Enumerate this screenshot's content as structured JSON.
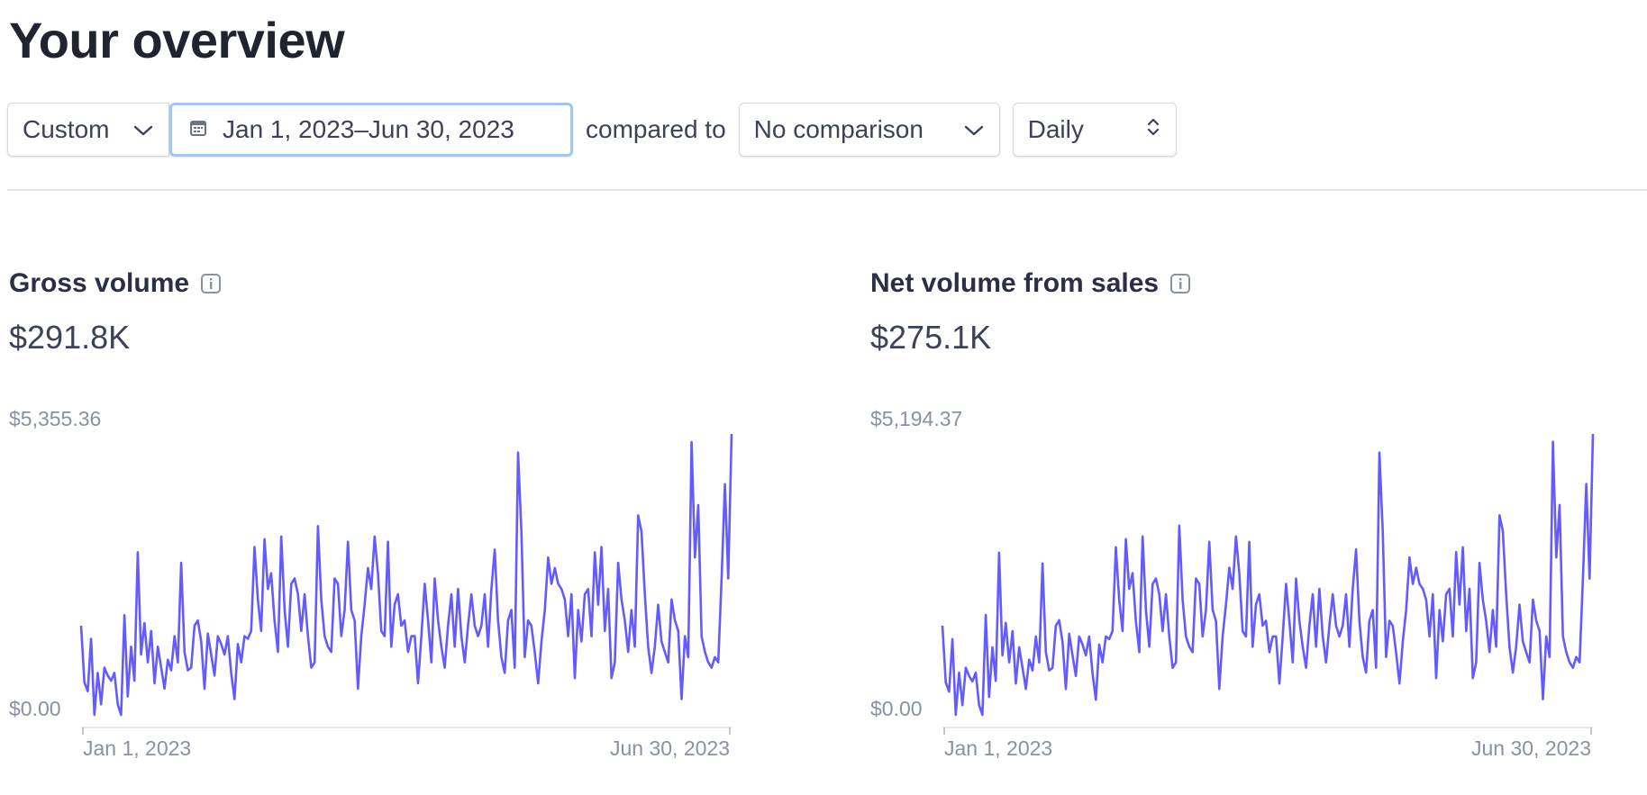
{
  "page": {
    "title": "Your overview"
  },
  "filters": {
    "period_label": "Custom",
    "date_range": "Jan 1, 2023–Jun 30, 2023",
    "compared_to_label": "compared to",
    "comparison_label": "No comparison",
    "interval_label": "Daily"
  },
  "icons": {
    "calendar": "calendar-icon",
    "chevron": "chevron-down-icon",
    "stepper": "up-down-chevron-icon",
    "info": "info-icon"
  },
  "colors": {
    "line": "#635bff",
    "focus_ring": "#9ec9f0",
    "axis": "#8792a2"
  },
  "metrics": [
    {
      "title": "Gross volume",
      "value": "$291.8K",
      "y_max_label": "$5,355.36",
      "y_min_label": "$0.00",
      "x_start_label": "Jan 1, 2023",
      "x_end_label": "Jun 30, 2023"
    },
    {
      "title": "Net volume from sales",
      "value": "$275.1K",
      "y_max_label": "$5,194.37",
      "y_min_label": "$0.00",
      "x_start_label": "Jan 1, 2023",
      "x_end_label": "Jun 30, 2023"
    }
  ],
  "chart_data": [
    {
      "type": "line",
      "x_start": "2023-01-01",
      "x_end": "2023-06-30",
      "ylim": [
        0,
        5355.36
      ],
      "series": [
        {
          "values": [
            1700,
            620,
            450,
            1450,
            0,
            800,
            200,
            900,
            750,
            650,
            800,
            200,
            0,
            1900,
            350,
            1300,
            650,
            3100,
            1150,
            1750,
            1000,
            1600,
            600,
            1300,
            900,
            500,
            1050,
            850,
            1500,
            1000,
            2900,
            1200,
            850,
            900,
            1700,
            1800,
            1400,
            500,
            1550,
            1150,
            750,
            1500,
            1350,
            1150,
            1500,
            800,
            300,
            1350,
            1000,
            1500,
            1450,
            1600,
            3200,
            2200,
            1600,
            3350,
            2400,
            2700,
            1800,
            1200,
            3400,
            2000,
            1300,
            2500,
            2600,
            2300,
            1600,
            2300,
            1500,
            900,
            1000,
            3600,
            2200,
            1500,
            1300,
            1200,
            2600,
            2500,
            1500,
            2000,
            3300,
            2000,
            1800,
            500,
            1500,
            2100,
            2800,
            2400,
            3400,
            2700,
            1600,
            1500,
            3300,
            1300,
            2100,
            2300,
            1700,
            1800,
            1200,
            1500,
            1500,
            600,
            1500,
            2500,
            1800,
            1000,
            2600,
            1800,
            1300,
            900,
            1700,
            2300,
            1300,
            2400,
            1500,
            1000,
            1700,
            2300,
            1700,
            1500,
            1700,
            2300,
            1300,
            2400,
            3150,
            1800,
            1100,
            800,
            1800,
            2000,
            900,
            5000,
            3500,
            1100,
            1800,
            1700,
            1200,
            600,
            1400,
            2000,
            3000,
            2500,
            2800,
            2500,
            2400,
            2200,
            1500,
            2300,
            700,
            2000,
            1400,
            2300,
            2400,
            1500,
            3100,
            2100,
            3200,
            1600,
            2400,
            700,
            1000,
            2900,
            2200,
            1800,
            1200,
            2000,
            1300,
            3800,
            3500,
            2300,
            1300,
            800,
            1300,
            2100,
            1400,
            1200,
            1000,
            2200,
            1800,
            1600,
            300,
            1500,
            1100,
            5200,
            3000,
            4000,
            1500,
            1200,
            1000,
            900,
            1100,
            1000,
            2600,
            4400,
            2600,
            5355
          ]
        }
      ]
    },
    {
      "type": "line",
      "x_start": "2023-01-01",
      "x_end": "2023-06-30",
      "ylim": [
        0,
        5194.37
      ],
      "series": [
        {
          "values": [
            1650,
            600,
            430,
            1400,
            0,
            780,
            180,
            870,
            720,
            620,
            780,
            180,
            0,
            1850,
            330,
            1250,
            630,
            3000,
            1100,
            1700,
            970,
            1550,
            580,
            1250,
            870,
            480,
            1020,
            820,
            1450,
            970,
            2800,
            1160,
            820,
            870,
            1650,
            1750,
            1350,
            480,
            1500,
            1100,
            720,
            1450,
            1300,
            1100,
            1450,
            770,
            280,
            1300,
            970,
            1450,
            1400,
            1550,
            3100,
            2130,
            1550,
            3250,
            2330,
            2620,
            1740,
            1160,
            3300,
            1940,
            1260,
            2420,
            2520,
            2230,
            1550,
            2230,
            1450,
            870,
            970,
            3500,
            2130,
            1450,
            1260,
            1160,
            2520,
            2420,
            1450,
            1940,
            3200,
            1940,
            1740,
            480,
            1450,
            2040,
            2720,
            2330,
            3300,
            2620,
            1550,
            1450,
            3200,
            1260,
            2040,
            2230,
            1650,
            1740,
            1160,
            1450,
            1450,
            580,
            1450,
            2420,
            1740,
            970,
            2520,
            1740,
            1260,
            870,
            1650,
            2230,
            1260,
            2330,
            1450,
            970,
            1650,
            2230,
            1650,
            1450,
            1650,
            2230,
            1260,
            2330,
            3060,
            1740,
            1070,
            780,
            1740,
            1940,
            870,
            4850,
            3400,
            1070,
            1740,
            1650,
            1160,
            580,
            1360,
            1940,
            2910,
            2420,
            2720,
            2420,
            2330,
            2130,
            1450,
            2230,
            680,
            1940,
            1360,
            2230,
            2330,
            1450,
            3010,
            2040,
            3100,
            1550,
            2330,
            680,
            970,
            2810,
            2130,
            1740,
            1160,
            1940,
            1260,
            3690,
            3400,
            2230,
            1260,
            780,
            1260,
            2040,
            1360,
            1160,
            970,
            2130,
            1740,
            1550,
            290,
            1450,
            1070,
            5050,
            2910,
            3880,
            1450,
            1160,
            970,
            870,
            1070,
            970,
            2520,
            4270,
            2520,
            5194
          ]
        }
      ]
    }
  ]
}
